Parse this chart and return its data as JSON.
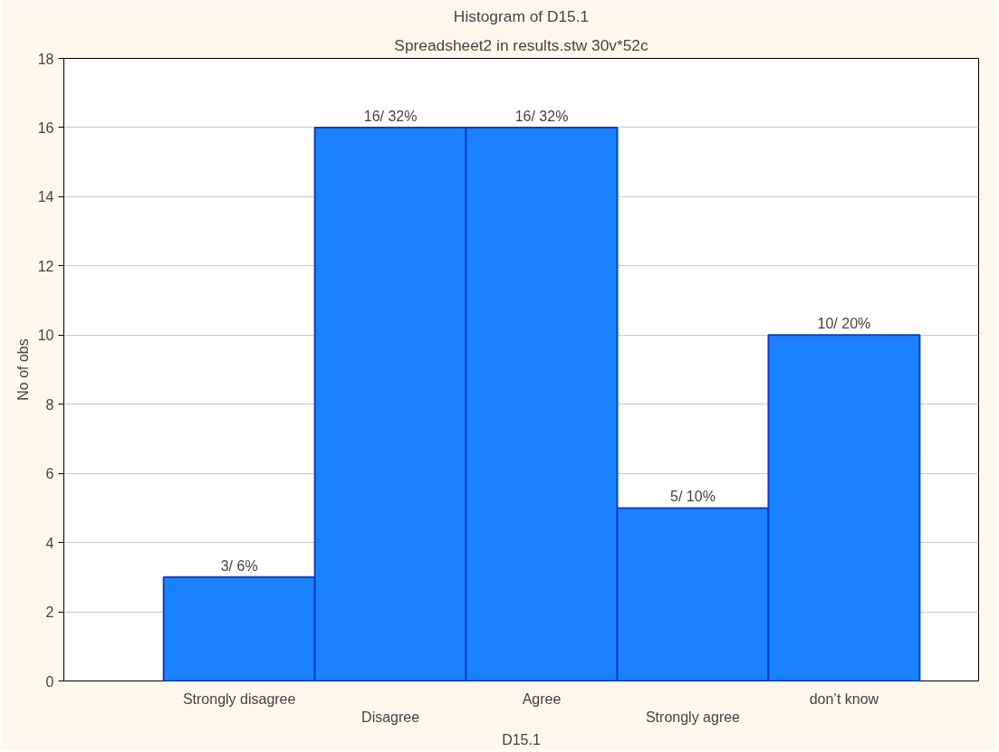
{
  "chart_data": {
    "type": "bar",
    "title": "Histogram of D15.1",
    "subtitle": "Spreadsheet2 in results.stw 30v*52c",
    "xlabel": "D15.1",
    "ylabel": "No of obs",
    "categories": [
      "Strongly disagree",
      "Disagree",
      "Agree",
      "Strongly agree",
      "don’t know"
    ],
    "values": [
      3,
      16,
      16,
      5,
      10
    ],
    "value_labels": [
      "3/ 6%",
      "16/ 32%",
      "16/ 32%",
      "5/ 10%",
      "10/ 20%"
    ],
    "color": "#1a82ff",
    "ylim": [
      0,
      18
    ],
    "yticks": [
      0,
      2,
      4,
      6,
      8,
      10,
      12,
      14,
      16,
      18
    ],
    "grid": "y"
  }
}
